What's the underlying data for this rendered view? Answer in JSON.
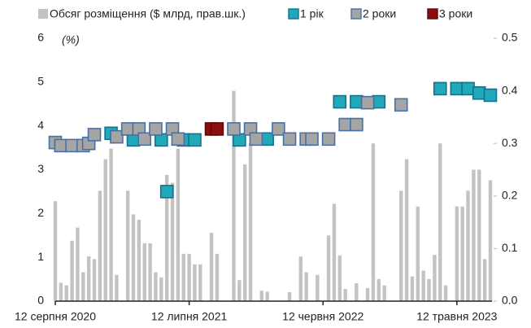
{
  "chart_data": {
    "type": "bar",
    "annotation": "(%)",
    "categories": [
      "12 серпня 2020",
      null,
      null,
      null,
      null,
      null,
      null,
      null,
      null,
      null,
      null,
      null,
      null,
      null,
      null,
      null,
      null,
      null,
      null,
      null,
      null,
      null,
      null,
      null,
      "12 липня 2021",
      null,
      null,
      null,
      null,
      null,
      null,
      null,
      null,
      null,
      null,
      null,
      null,
      null,
      null,
      null,
      null,
      null,
      null,
      null,
      null,
      null,
      null,
      null,
      "12 червня 2022",
      null,
      null,
      null,
      null,
      null,
      null,
      null,
      null,
      null,
      null,
      null,
      null,
      null,
      null,
      null,
      null,
      null,
      null,
      null,
      null,
      null,
      null,
      null,
      "12 травня 2023",
      null,
      null,
      null,
      null,
      null,
      null
    ],
    "ylim": [
      0,
      6
    ],
    "yticks": [
      0,
      1,
      2,
      3,
      4,
      5,
      6
    ],
    "y2lim": [
      0,
      0.5
    ],
    "y2ticks": [
      {
        "value": 0,
        "label": "0.0"
      },
      0.1,
      0.2,
      0.3,
      0.4,
      0.5
    ],
    "grid": false,
    "series": [
      {
        "name": "Обсяг розміщення ($ млрд, прав.шк.)",
        "type": "bar",
        "axis": "y2",
        "color": "#c3c3c3",
        "values": [
          0.19,
          0.035,
          0.03,
          0.115,
          0.14,
          0.055,
          0.085,
          0.08,
          0.21,
          0.27,
          0.29,
          0.05,
          null,
          0.21,
          0.165,
          0.155,
          0.11,
          0.11,
          0.055,
          0.045,
          0.24,
          0.225,
          0.29,
          0.09,
          0.09,
          0.07,
          0.07,
          null,
          0.13,
          0.09,
          null,
          null,
          0.4,
          0.04,
          0.26,
          0.3,
          null,
          0.02,
          0.018,
          null,
          null,
          null,
          0.017,
          null,
          0.085,
          0.055,
          null,
          0.05,
          null,
          0.125,
          0.185,
          0.087,
          0.023,
          null,
          0.034,
          null,
          0.025,
          0.3,
          0.042,
          0.03,
          null,
          null,
          0.21,
          0.27,
          0.047,
          0.18,
          0.058,
          0.042,
          0.088,
          0.3,
          0.03,
          null,
          0.18,
          0.18,
          0.21,
          0.25,
          0.25,
          0.08,
          0.23
        ]
      },
      {
        "name": "1 рік",
        "type": "scatter",
        "color": "#1fa9b9",
        "edge": "#17708f",
        "values": [
          null,
          null,
          null,
          null,
          null,
          null,
          null,
          null,
          null,
          null,
          3.83,
          null,
          null,
          null,
          3.68,
          null,
          null,
          null,
          null,
          3.68,
          2.5,
          null,
          null,
          3.68,
          null,
          3.68,
          null,
          null,
          null,
          null,
          null,
          null,
          null,
          3.68,
          null,
          null,
          null,
          null,
          3.7,
          null,
          null,
          null,
          null,
          null,
          null,
          null,
          null,
          null,
          null,
          null,
          null,
          4.55,
          null,
          null,
          4.55,
          null,
          null,
          null,
          4.55,
          null,
          null,
          null,
          null,
          null,
          null,
          null,
          null,
          null,
          null,
          4.85,
          null,
          null,
          4.85,
          null,
          4.85,
          null,
          4.75,
          null,
          4.7
        ]
      },
      {
        "name": "2 роки",
        "type": "scatter",
        "color": "#a5a5a5",
        "edge": "#4670a8",
        "values": [
          3.62,
          3.55,
          null,
          3.55,
          null,
          3.55,
          3.6,
          3.8,
          null,
          null,
          null,
          3.75,
          null,
          3.93,
          null,
          3.93,
          3.7,
          null,
          3.93,
          null,
          null,
          3.93,
          3.7,
          null,
          null,
          null,
          null,
          null,
          null,
          null,
          null,
          null,
          3.93,
          null,
          null,
          3.93,
          3.7,
          null,
          null,
          null,
          3.93,
          null,
          3.7,
          null,
          null,
          3.7,
          3.7,
          null,
          null,
          3.7,
          null,
          null,
          4.03,
          null,
          4.03,
          null,
          4.53,
          null,
          null,
          null,
          null,
          null,
          4.48,
          null,
          null,
          null,
          null,
          null,
          null,
          null,
          null,
          null,
          null,
          null,
          null,
          null,
          null,
          null,
          null
        ]
      },
      {
        "name": "3 роки",
        "type": "scatter",
        "color": "#8b0d0d",
        "edge": "#5a0a0a",
        "values": [
          null,
          null,
          null,
          null,
          null,
          null,
          null,
          null,
          null,
          null,
          null,
          null,
          null,
          null,
          null,
          null,
          null,
          null,
          null,
          null,
          null,
          null,
          null,
          null,
          null,
          null,
          null,
          null,
          3.93,
          3.93,
          null,
          null,
          null,
          null,
          null,
          null,
          null,
          null,
          null,
          null,
          null,
          null,
          null,
          null,
          null,
          null,
          null,
          null,
          null,
          null,
          null,
          null,
          null,
          null,
          null,
          null,
          null,
          null,
          null,
          null,
          null,
          null,
          null,
          null,
          null,
          null,
          null,
          null,
          null,
          null,
          null,
          null,
          null,
          null,
          null,
          null,
          null,
          null,
          null
        ]
      }
    ]
  }
}
